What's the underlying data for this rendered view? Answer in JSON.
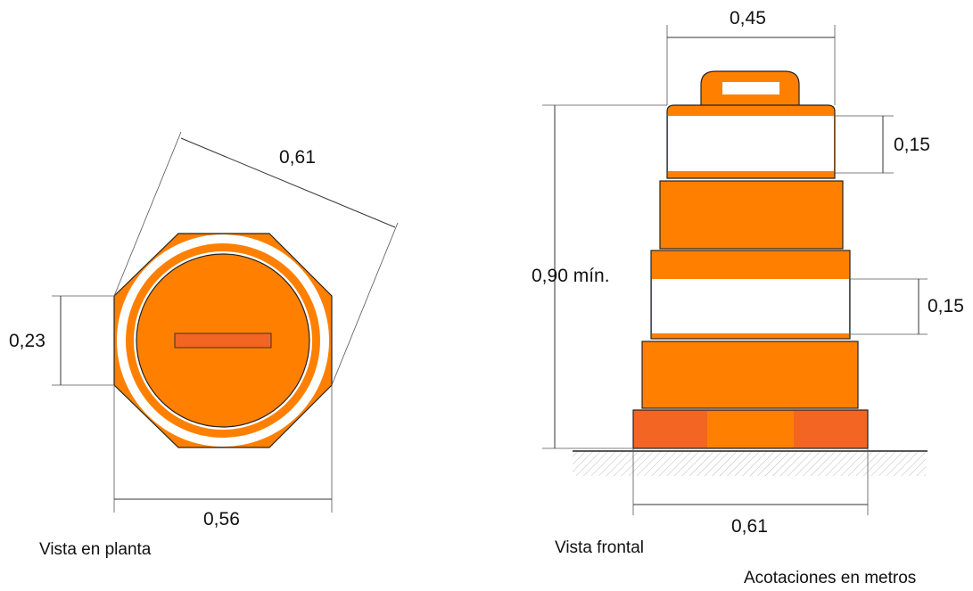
{
  "plan_view": {
    "caption": "Vista en planta",
    "dim_side": "0,23",
    "dim_width": "0,56",
    "dim_diagonal": "0,61"
  },
  "front_view": {
    "caption": "Vista frontal",
    "dim_top_width": "0,45",
    "dim_band_top": "0,15",
    "dim_band_bottom": "0,15",
    "dim_height": "0,90 mín.",
    "dim_base_width": "0,61"
  },
  "note": "Acotaciones en metros",
  "colors": {
    "orange": "#FF8000",
    "dark_orange": "#F26522",
    "white": "#FFFFFF",
    "outline": "#222222"
  }
}
